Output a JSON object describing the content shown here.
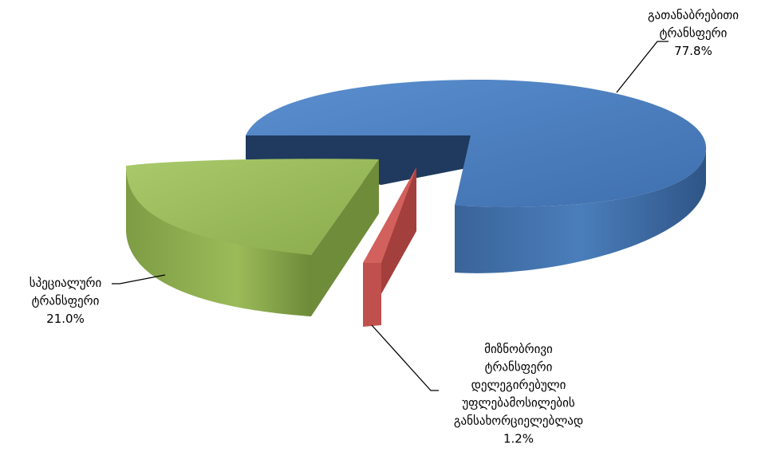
{
  "chart_data": {
    "type": "pie",
    "title": "",
    "series": [
      {
        "name": "",
        "labels": [
          "გათანაბრებითი ტრანსფერი",
          "სპეციალური ტრანსფერი",
          "მიზნობრივი ტრანსფერი დელეგირებული უფლებამოსილების განსახორციელებლად"
        ],
        "values": [
          77.8,
          21.0,
          1.2
        ]
      }
    ],
    "slices": [
      {
        "label_lines": [
          "გათანაბრებითი",
          "ტრანსფერი"
        ],
        "value": 77.8,
        "value_label": "77.8%",
        "color": "#4a7ebb",
        "exploded": false
      },
      {
        "label_lines": [
          "სპეციალური",
          "ტრანსფერი"
        ],
        "value": 21.0,
        "value_label": "21.0%",
        "color": "#9bbb59",
        "exploded": true
      },
      {
        "label_lines": [
          "მიზნობრივი",
          "ტრანსფერი",
          "დელეგირებული",
          "უფლებამოსილების",
          "განსახორციელებლად"
        ],
        "value": 1.2,
        "value_label": "1.2%",
        "color": "#c0504d",
        "exploded": true
      }
    ],
    "legend": "none",
    "style": "3d-exploded"
  }
}
